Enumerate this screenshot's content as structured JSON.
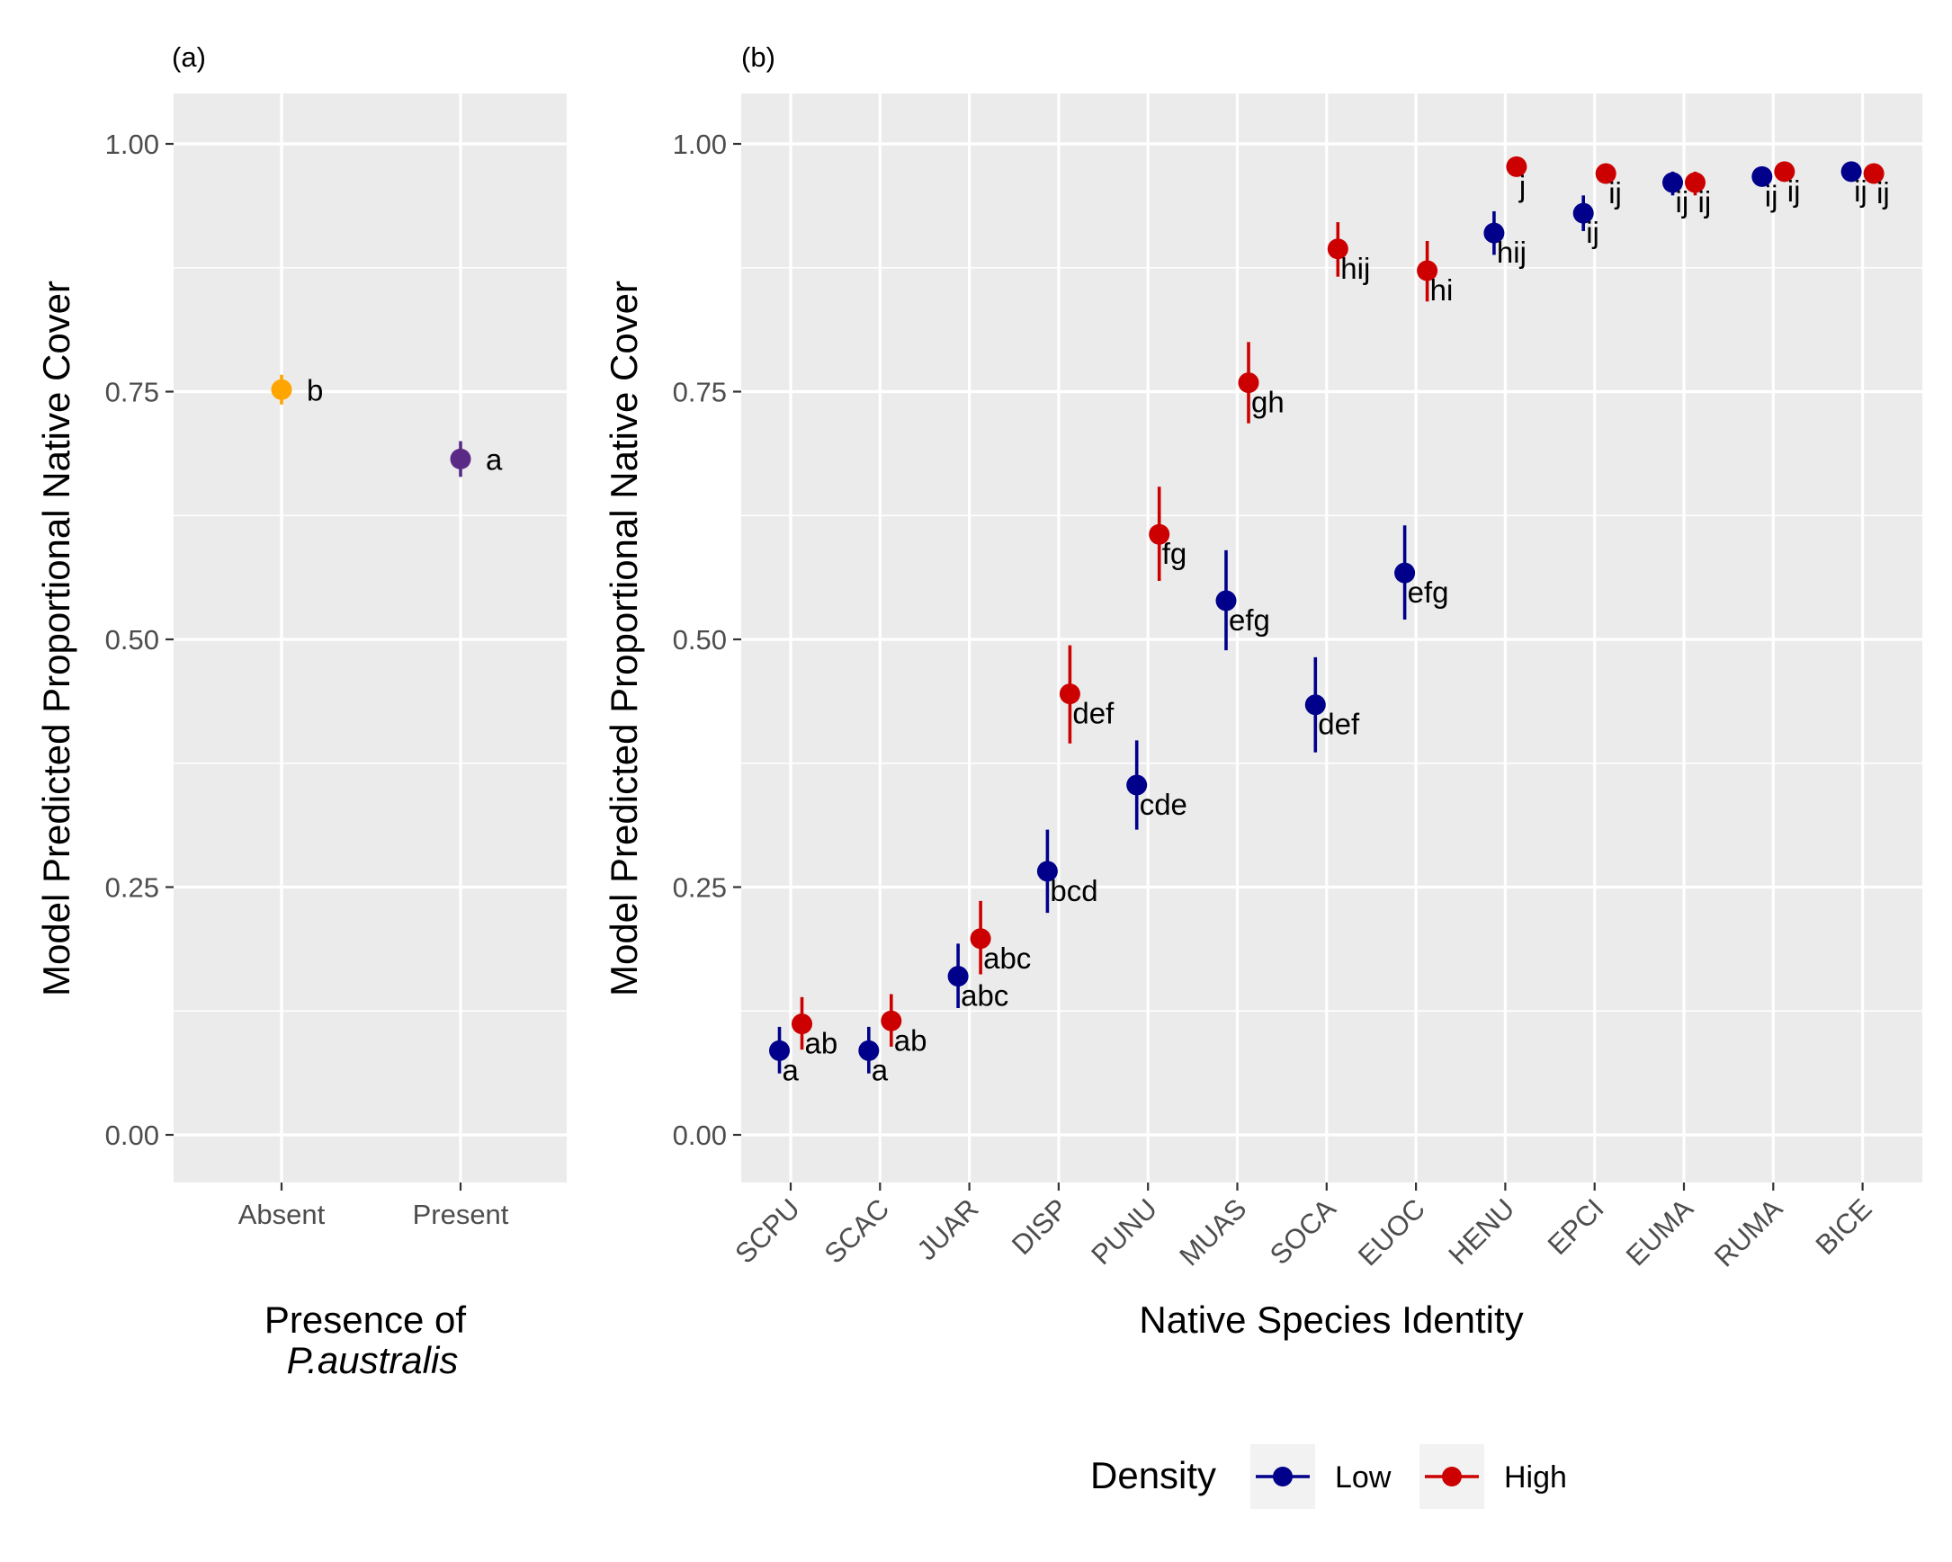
{
  "colors": {
    "absent": "#FFA500",
    "present": "#5B2A86",
    "low": "#00008B",
    "high": "#CC0000"
  },
  "chart_data": [
    {
      "type": "scatter",
      "panel_tag": "(a)",
      "xlabel_line1": "Presence of",
      "xlabel_line2": "P.australis",
      "ylabel": "Model Predicted Proportional Native Cover",
      "ylim": [
        -0.1,
        1.05
      ],
      "yticks": [
        "0.00",
        "0.25",
        "0.50",
        "0.75",
        "1.00"
      ],
      "categories": [
        "Absent",
        "Present"
      ],
      "grid": true,
      "points": [
        {
          "category": "Absent",
          "y": 0.752,
          "lower": 0.737,
          "upper": 0.767,
          "letter": "b",
          "color_key": "absent"
        },
        {
          "category": "Present",
          "y": 0.682,
          "lower": 0.664,
          "upper": 0.7,
          "letter": "a",
          "color_key": "present"
        }
      ]
    },
    {
      "type": "scatter",
      "panel_tag": "(b)",
      "xlabel": "Native Species Identity",
      "ylabel": "Model Predicted Proportional Native Cover",
      "ylim": [
        -0.1,
        1.05
      ],
      "yticks": [
        "0.00",
        "0.25",
        "0.50",
        "0.75",
        "1.00"
      ],
      "categories": [
        "SCPU",
        "SCAC",
        "JUAR",
        "DISP",
        "PUNU",
        "MUAS",
        "SOCA",
        "EUOC",
        "HENU",
        "EPCI",
        "EUMA",
        "RUMA",
        "BICE"
      ],
      "grid": true,
      "legend": {
        "title": "Density",
        "position": "bottom"
      },
      "series": [
        {
          "name": "Low",
          "color_key": "low",
          "values": [
            0.085,
            0.085,
            0.16,
            0.266,
            0.353,
            0.539,
            0.434,
            0.567,
            0.91,
            0.93,
            0.961,
            0.967,
            0.972
          ],
          "lower": [
            0.062,
            0.062,
            0.128,
            0.224,
            0.308,
            0.489,
            0.386,
            0.52,
            0.888,
            0.912,
            0.948,
            0.957,
            0.964
          ],
          "upper": [
            0.109,
            0.109,
            0.193,
            0.308,
            0.398,
            0.59,
            0.482,
            0.615,
            0.932,
            0.948,
            0.972,
            0.976,
            0.979
          ],
          "letters": [
            "a",
            "a",
            "abc",
            "bcd",
            "cde",
            "efg",
            "def",
            "efg",
            "hij",
            "ij",
            "ij",
            "ij",
            "ij"
          ]
        },
        {
          "name": "High",
          "color_key": "high",
          "values": [
            0.112,
            0.115,
            0.198,
            0.445,
            0.606,
            0.759,
            0.894,
            0.872,
            0.977,
            0.97,
            0.961,
            0.972,
            0.97
          ],
          "lower": [
            0.086,
            0.089,
            0.162,
            0.395,
            0.559,
            0.718,
            0.866,
            0.841,
            0.968,
            0.96,
            0.948,
            0.964,
            0.96
          ],
          "upper": [
            0.139,
            0.142,
            0.236,
            0.494,
            0.654,
            0.8,
            0.921,
            0.902,
            0.984,
            0.978,
            0.972,
            0.979,
            0.978
          ],
          "letters": [
            "ab",
            "ab",
            "abc",
            "def",
            "fg",
            "gh",
            "hij",
            "hi",
            "j",
            "ij",
            "ij",
            "ij",
            "ij"
          ]
        }
      ]
    }
  ]
}
